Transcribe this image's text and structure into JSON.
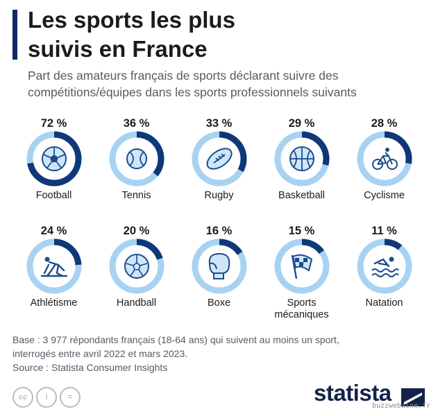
{
  "header": {
    "title_line1": "Les sports les plus",
    "title_line2": "suivis en France",
    "subtitle_line1": "Part des amateurs français de sports déclarant suivre des",
    "subtitle_line2": "compétitions/équipes dans les sports professionnels suivants"
  },
  "colors": {
    "ring_bg": "#a8d2f2",
    "ring_fg": "#0f3878",
    "icon": "#1a4b8c",
    "brand": "#15234a"
  },
  "chart_data": {
    "type": "pie",
    "title": "Les sports les plus suivis en France",
    "unit": "%",
    "categories": [
      "Football",
      "Tennis",
      "Rugby",
      "Basketball",
      "Cyclisme",
      "Athlétisme",
      "Handball",
      "Boxe",
      "Sports mécaniques",
      "Natation"
    ],
    "values": [
      72,
      36,
      33,
      29,
      28,
      24,
      20,
      16,
      15,
      11
    ],
    "labels": [
      "72 %",
      "36 %",
      "33 %",
      "29 %",
      "28 %",
      "24 %",
      "20 %",
      "16 %",
      "15 %",
      "11 %"
    ],
    "display_names": [
      [
        "Football"
      ],
      [
        "Tennis"
      ],
      [
        "Rugby"
      ],
      [
        "Basketball"
      ],
      [
        "Cyclisme"
      ],
      [
        "Athlétisme"
      ],
      [
        "Handball"
      ],
      [
        "Boxe"
      ],
      [
        "Sports",
        "mécaniques"
      ],
      [
        "Natation"
      ]
    ],
    "icons": [
      "football-icon",
      "tennis-icon",
      "rugby-icon",
      "basketball-icon",
      "cycling-icon",
      "athletics-icon",
      "handball-icon",
      "boxing-icon",
      "racing-flag-icon",
      "swimming-icon"
    ]
  },
  "footer": {
    "base_line1": "Base : 3 977 répondants français (18-64 ans) qui suivent au moins un sport,",
    "base_line2": "interrogés entre avril 2022 et mars 2023.",
    "source": "Source : Statista Consumer Insights",
    "cc_icons": [
      "cc-icon",
      "attribution-icon",
      "no-derivatives-icon"
    ],
    "cc_labels": [
      "cc",
      "i",
      "="
    ],
    "brand": "statista",
    "watermark": "buzzwebzine.fr"
  }
}
